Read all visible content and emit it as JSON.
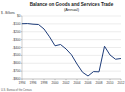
{
  "chart_data": {
    "type": "line",
    "title": "Balance on Goods and Services Trade",
    "subtitle": "(Annual)",
    "y_label": "$ - Billions",
    "source": "U.S. Bureau of the Census",
    "x": [
      1994,
      1995,
      1996,
      1997,
      1998,
      1999,
      2000,
      2001,
      2002,
      2003,
      2004,
      2005,
      2006,
      2007,
      2008,
      2009,
      2010,
      2011,
      2012
    ],
    "series": [
      {
        "name": "Balance",
        "color": "#1f3d7a",
        "values": [
          -98,
          -96,
          -104,
          -108,
          -165,
          -264,
          -378,
          -362,
          -418,
          -493,
          -610,
          -714,
          -762,
          -706,
          -709,
          -384,
          -495,
          -549,
          -540
        ]
      }
    ],
    "xlim": [
      1994,
      2012
    ],
    "xticks": [
      1994,
      1996,
      1998,
      2000,
      2002,
      2004,
      2006,
      2008,
      2010,
      2012
    ],
    "ylim": [
      -800,
      0
    ],
    "yticks": [
      {
        "value": 0,
        "label": "$0"
      },
      {
        "value": -100,
        "label": "-$100"
      },
      {
        "value": -200,
        "label": "-$200"
      },
      {
        "value": -300,
        "label": "-$300"
      },
      {
        "value": -400,
        "label": "-$400"
      },
      {
        "value": -500,
        "label": "-$500"
      },
      {
        "value": -600,
        "label": "-$600"
      },
      {
        "value": -700,
        "label": "-$700"
      },
      {
        "value": -800,
        "label": "-$800"
      }
    ],
    "grid": true
  }
}
